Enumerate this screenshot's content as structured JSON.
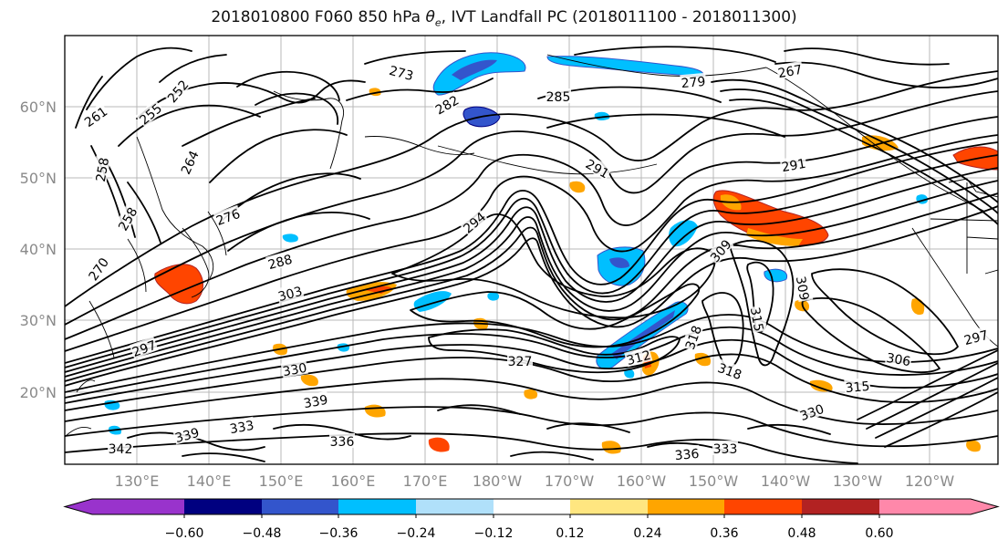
{
  "title_prefix": "2018010800 F060 850 hPa ",
  "title_symbol": "θ",
  "title_subscript": "e",
  "title_suffix": ", IVT Landfall PC (2018011100 - 2018011300)",
  "lat_labels": [
    "60°N",
    "50°N",
    "40°N",
    "30°N",
    "20°N"
  ],
  "lon_labels": [
    "130°E",
    "140°E",
    "150°E",
    "160°E",
    "170°E",
    "180°W",
    "170°W",
    "160°W",
    "150°W",
    "140°W",
    "130°W",
    "120°W"
  ],
  "colorbar": {
    "colors": [
      "#9933cc",
      "#000080",
      "#3355cc",
      "#00bfff",
      "#b0e0fa",
      "#ffffff",
      "#ffe680",
      "#ffa500",
      "#ff4500",
      "#b22222",
      "#ff88aa"
    ],
    "tick_labels": [
      "−0.60",
      "−0.48",
      "−0.36",
      "−0.24",
      "−0.12",
      "0.12",
      "0.24",
      "0.36",
      "0.48",
      "0.60"
    ]
  },
  "contour_labels": [
    "258",
    "261",
    "255",
    "252",
    "264",
    "267",
    "270",
    "273",
    "276",
    "279",
    "282",
    "285",
    "288",
    "291",
    "294",
    "297",
    "303",
    "306",
    "309",
    "312",
    "315",
    "318",
    "327",
    "330",
    "333",
    "336",
    "339",
    "342"
  ]
}
